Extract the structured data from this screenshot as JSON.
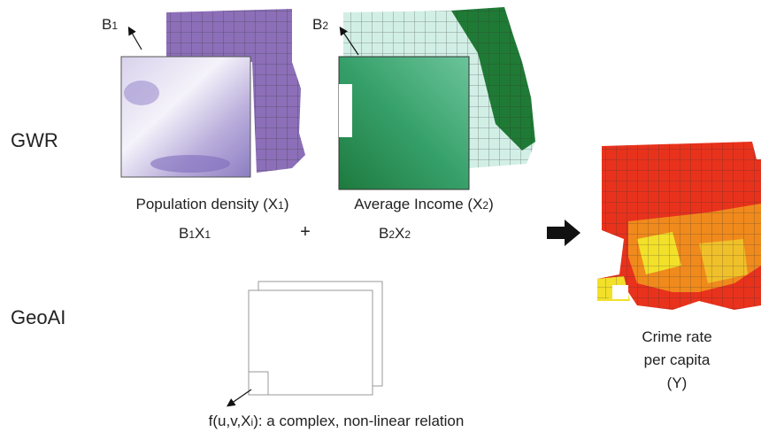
{
  "rows": {
    "gwr": "GWR",
    "geoai": "GeoAI"
  },
  "coefficients": {
    "b1": [
      "B",
      "1"
    ],
    "b2": [
      "B",
      "2"
    ]
  },
  "variables": {
    "x1": [
      "Population density (X",
      "1",
      ")"
    ],
    "x2": [
      "Average Income (X",
      "2",
      ")"
    ]
  },
  "equation": {
    "term1": [
      "B",
      "1",
      "X",
      "1"
    ],
    "operator": "+",
    "term2": [
      "B",
      "2",
      "X",
      "2"
    ]
  },
  "output": {
    "lines": [
      "Crime rate",
      "per capita",
      "(Y)"
    ]
  },
  "geoai_caption": [
    "f(u,v,X",
    "i",
    "): a complex, non-linear relation"
  ]
}
